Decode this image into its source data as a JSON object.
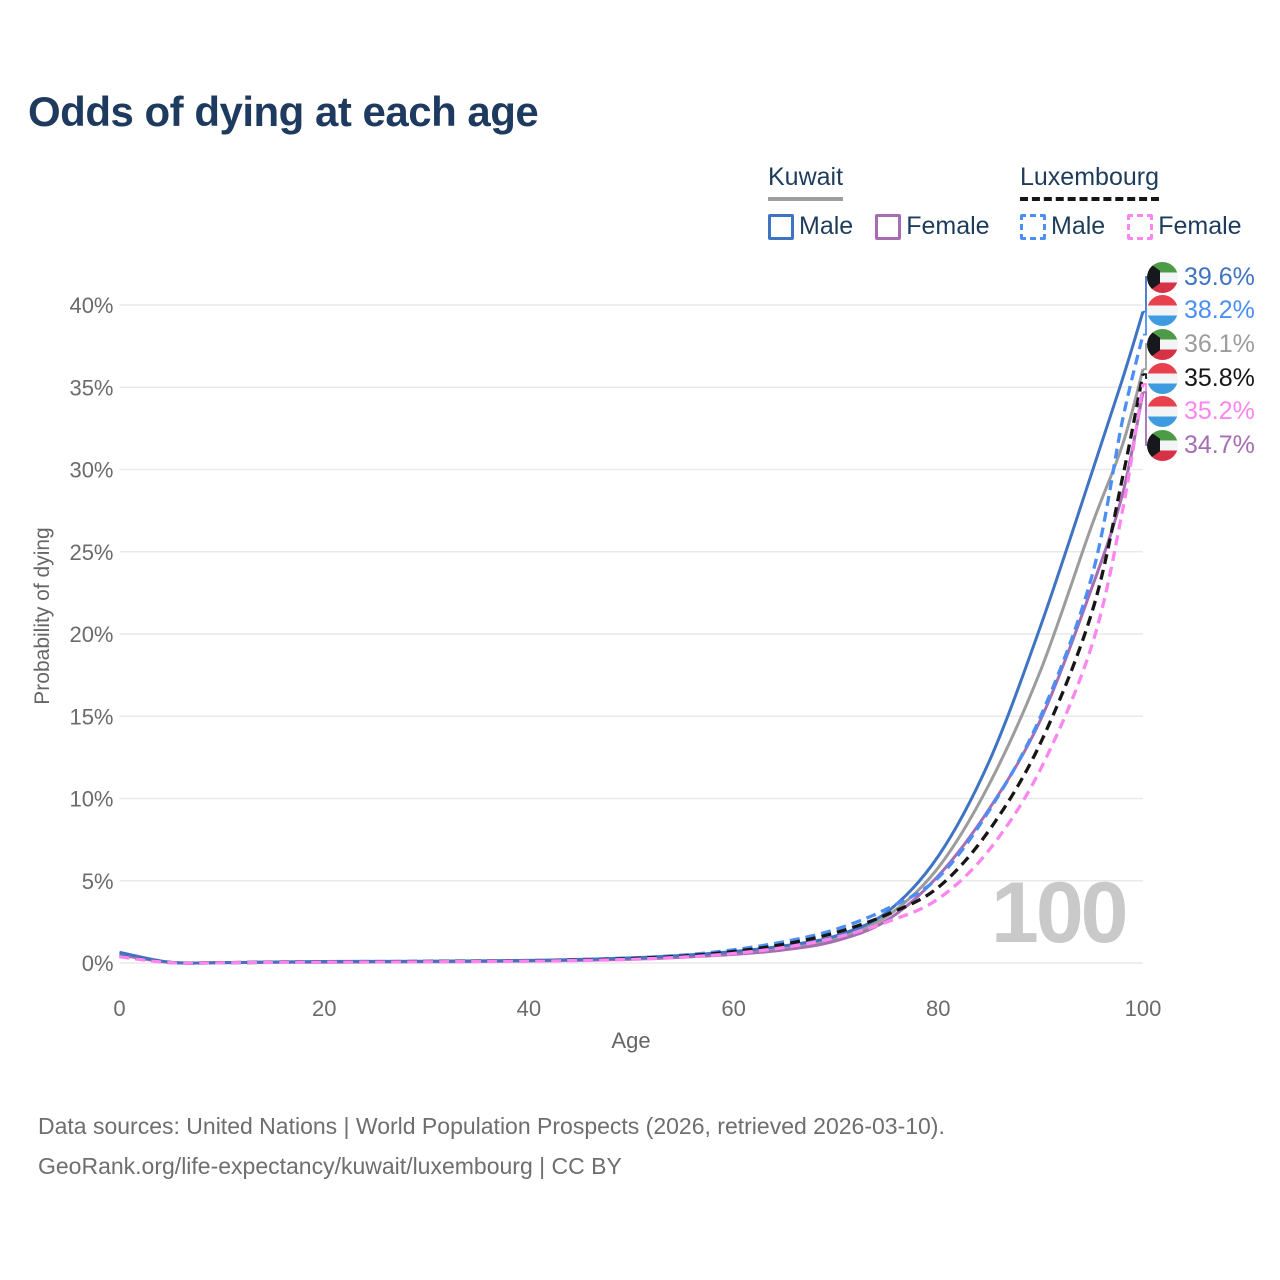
{
  "title": "Odds of dying at each age",
  "legend": {
    "kuwait": {
      "label": "Kuwait",
      "male_label": "Male",
      "female_label": "Female"
    },
    "luxembourg": {
      "label": "Luxembourg",
      "male_label": "Male",
      "female_label": "Female"
    }
  },
  "axes": {
    "y_title": "Probability of dying",
    "x_title": "Age"
  },
  "colors": {
    "kuwait_male": "#3f74c3",
    "kuwait_female": "#a76db3",
    "kuwait_all": "#9c9c9c",
    "luxembourg_male": "#4b8ef5",
    "luxembourg_female": "#fb86ef",
    "luxembourg_all": "#161616",
    "title_navy": "#1e3a5f",
    "legend_text": "#1d3c5c",
    "axis_text": "#6b6b6b",
    "gridline": "#e9e9e9",
    "watermark_gray": "#c9c9c9",
    "kuwait_underline": "#9e9e9e",
    "luxembourg_underline": "#161616"
  },
  "end_labels": [
    {
      "value": "39.6%",
      "flag": "kuwait",
      "series": "Kuwait Male",
      "color": "#3f74c3"
    },
    {
      "value": "38.2%",
      "flag": "luxembourg",
      "series": "Luxembourg Male",
      "color": "#4b8ef5"
    },
    {
      "value": "36.1%",
      "flag": "kuwait",
      "series": "Kuwait Both sexes",
      "color": "#9c9c9c"
    },
    {
      "value": "35.8%",
      "flag": "luxembourg",
      "series": "Luxembourg Both sexes",
      "color": "#161616"
    },
    {
      "value": "35.2%",
      "flag": "luxembourg",
      "series": "Luxembourg Female",
      "color": "#fb86ef"
    },
    {
      "value": "34.7%",
      "flag": "kuwait",
      "series": "Kuwait Female",
      "color": "#a76db3"
    }
  ],
  "footer": {
    "line1": "Data sources: United Nations | World Population Prospects (2026, retrieved 2026-03-10).",
    "line2": "GeoRank.org/life-expectancy/kuwait/luxembourg | CC BY"
  },
  "chart_data": {
    "type": "line",
    "title": "Odds of dying at each age",
    "xlabel": "Age",
    "ylabel": "Probability of dying",
    "x_ticks": [
      0,
      20,
      40,
      60,
      80,
      100
    ],
    "y_ticks": [
      "0%",
      "5%",
      "10%",
      "15%",
      "20%",
      "25%",
      "30%",
      "35%",
      "40%"
    ],
    "xlim": [
      0,
      100
    ],
    "ylim_percent": [
      0,
      40
    ],
    "grid": "horizontal",
    "legend_position": "top-right",
    "watermark": "100",
    "ages": [
      0,
      5,
      10,
      15,
      20,
      25,
      30,
      35,
      40,
      45,
      50,
      55,
      60,
      65,
      70,
      75,
      80,
      85,
      90,
      95,
      98,
      100
    ],
    "series": [
      {
        "name": "Kuwait Both sexes",
        "country": "Kuwait",
        "sex": "Both",
        "style": "solid",
        "color": "#9c9c9c",
        "end_label": "36.1%",
        "values": [
          0.55,
          0.035,
          0.025,
          0.05,
          0.07,
          0.08,
          0.09,
          0.11,
          0.14,
          0.19,
          0.27,
          0.4,
          0.6,
          0.92,
          1.5,
          2.85,
          5.8,
          10.9,
          17.8,
          26.6,
          31.5,
          36.1
        ]
      },
      {
        "name": "Kuwait Female",
        "country": "Kuwait",
        "sex": "Female",
        "style": "solid",
        "color": "#a76db3",
        "end_label": "34.7%",
        "values": [
          0.5,
          0.03,
          0.02,
          0.04,
          0.05,
          0.06,
          0.07,
          0.09,
          0.12,
          0.16,
          0.23,
          0.35,
          0.52,
          0.8,
          1.35,
          2.6,
          5.3,
          9.4,
          14.8,
          22.8,
          28.5,
          34.7
        ]
      },
      {
        "name": "Kuwait Male",
        "country": "Kuwait",
        "sex": "Male",
        "style": "solid",
        "color": "#3f74c3",
        "end_label": "39.6%",
        "values": [
          0.65,
          0.04,
          0.03,
          0.06,
          0.09,
          0.1,
          0.11,
          0.13,
          0.16,
          0.22,
          0.31,
          0.46,
          0.7,
          1.05,
          1.65,
          3.1,
          6.5,
          12.3,
          20.5,
          29.8,
          35.5,
          39.6
        ]
      },
      {
        "name": "Luxembourg Male",
        "country": "Luxembourg",
        "sex": "Male",
        "style": "dashed",
        "color": "#4b8ef5",
        "end_label": "38.2%",
        "values": [
          0.45,
          0.03,
          0.02,
          0.05,
          0.08,
          0.09,
          0.1,
          0.12,
          0.15,
          0.21,
          0.31,
          0.48,
          0.8,
          1.3,
          2.05,
          3.3,
          5.2,
          9.3,
          15.0,
          23.5,
          33.0,
          38.2
        ]
      },
      {
        "name": "Luxembourg Both sexes",
        "country": "Luxembourg",
        "sex": "Both",
        "style": "dashed",
        "color": "#161616",
        "end_label": "35.8%",
        "values": [
          0.4,
          0.025,
          0.02,
          0.04,
          0.06,
          0.07,
          0.09,
          0.11,
          0.13,
          0.18,
          0.27,
          0.42,
          0.7,
          1.15,
          1.85,
          2.95,
          4.6,
          8.1,
          13.4,
          21.3,
          29.5,
          35.8
        ]
      },
      {
        "name": "Luxembourg Female",
        "country": "Luxembourg",
        "sex": "Female",
        "style": "dashed",
        "color": "#fb86ef",
        "end_label": "35.2%",
        "values": [
          0.38,
          0.02,
          0.015,
          0.03,
          0.05,
          0.06,
          0.07,
          0.09,
          0.11,
          0.15,
          0.22,
          0.35,
          0.58,
          0.95,
          1.55,
          2.5,
          3.9,
          6.9,
          11.8,
          19.3,
          27.5,
          35.2
        ]
      }
    ]
  }
}
